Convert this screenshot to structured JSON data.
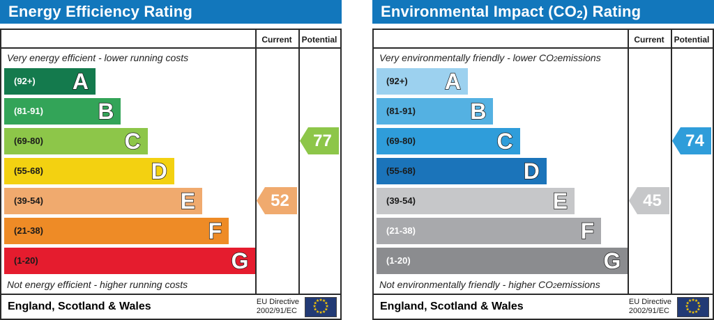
{
  "theme": {
    "title_bg": "#1277bc",
    "border": "#2a2a2a",
    "flag_bg": "#223a75",
    "flag_star_color": "#ffcc00",
    "flag_star": "★"
  },
  "charts": [
    {
      "id": "energy-efficiency",
      "title": {
        "pre": "Energy Efficiency Rating",
        "sub": "",
        "post": ""
      },
      "header": {
        "current": "Current",
        "potential": "Potential"
      },
      "top_caption": {
        "pre": "Very energy efficient - lower running costs",
        "sub": "",
        "post": ""
      },
      "bottom_caption": {
        "pre": "Not energy efficient - higher running costs",
        "sub": "",
        "post": ""
      },
      "bands": [
        {
          "letter": "A",
          "range": "(92+)",
          "color": "#147a4d",
          "width": "36%",
          "label_color": "#ffffff"
        },
        {
          "letter": "B",
          "range": "(81-91)",
          "color": "#33a458",
          "width": "46%",
          "label_color": "#ffffff"
        },
        {
          "letter": "C",
          "range": "(69-80)",
          "color": "#8dc649",
          "width": "56.5%",
          "label_color": "#1a1a1a"
        },
        {
          "letter": "D",
          "range": "(55-68)",
          "color": "#f3d111",
          "width": "67%",
          "label_color": "#1a1a1a"
        },
        {
          "letter": "E",
          "range": "(39-54)",
          "color": "#f0aa6e",
          "width": "78%",
          "label_color": "#1a1a1a"
        },
        {
          "letter": "F",
          "range": "(21-38)",
          "color": "#ee8b26",
          "width": "88.5%",
          "label_color": "#1a1a1a"
        },
        {
          "letter": "G",
          "range": "(1-20)",
          "color": "#e51c2e",
          "width": "99%",
          "label_color": "#1a1a1a"
        }
      ],
      "current": {
        "value": "52",
        "band_index": 4,
        "color": "#f0aa6e"
      },
      "potential": {
        "value": "77",
        "band_index": 2,
        "color": "#8dc649"
      },
      "footer": {
        "region": "England, Scotland & Wales",
        "directive_line1": "EU Directive",
        "directive_line2": "2002/91/EC"
      }
    },
    {
      "id": "environmental-impact-co2",
      "title": {
        "pre": "Environmental Impact (CO",
        "sub": "2",
        "post": ") Rating"
      },
      "header": {
        "current": "Current",
        "potential": "Potential"
      },
      "top_caption": {
        "pre": "Very environmentally friendly - lower CO",
        "sub": "2",
        "post": " emissions"
      },
      "bottom_caption": {
        "pre": "Not environmentally friendly - higher CO",
        "sub": "2",
        "post": " emissions"
      },
      "bands": [
        {
          "letter": "A",
          "range": "(92+)",
          "color": "#9cd1ef",
          "width": "36%",
          "label_color": "#1a1a1a"
        },
        {
          "letter": "B",
          "range": "(81-91)",
          "color": "#54b1e2",
          "width": "46%",
          "label_color": "#1a1a1a"
        },
        {
          "letter": "C",
          "range": "(69-80)",
          "color": "#2f9dda",
          "width": "56.5%",
          "label_color": "#1a1a1a"
        },
        {
          "letter": "D",
          "range": "(55-68)",
          "color": "#1b74ba",
          "width": "67%",
          "label_color": "#1a1a1a"
        },
        {
          "letter": "E",
          "range": "(39-54)",
          "color": "#c6c7c9",
          "width": "78%",
          "label_color": "#1a1a1a"
        },
        {
          "letter": "F",
          "range": "(21-38)",
          "color": "#a8a9ac",
          "width": "88.5%",
          "label_color": "#ffffff"
        },
        {
          "letter": "G",
          "range": "(1-20)",
          "color": "#8b8c8f",
          "width": "99%",
          "label_color": "#ffffff"
        }
      ],
      "current": {
        "value": "45",
        "band_index": 4,
        "color": "#c6c7c9"
      },
      "potential": {
        "value": "74",
        "band_index": 2,
        "color": "#2f9dda"
      },
      "footer": {
        "region": "England, Scotland & Wales",
        "directive_line1": "EU Directive",
        "directive_line2": "2002/91/EC"
      }
    }
  ],
  "chart_data": [
    {
      "type": "bar",
      "title": "Energy Efficiency Rating",
      "categories": [
        "A (92+)",
        "B (81-91)",
        "C (69-80)",
        "D (55-68)",
        "E (39-54)",
        "F (21-38)",
        "G (1-20)"
      ],
      "band_score_ranges": [
        [
          92,
          100
        ],
        [
          81,
          91
        ],
        [
          69,
          80
        ],
        [
          55,
          68
        ],
        [
          39,
          54
        ],
        [
          21,
          38
        ],
        [
          1,
          20
        ]
      ],
      "series": [
        {
          "name": "Current",
          "value": 52,
          "band": "E"
        },
        {
          "name": "Potential",
          "value": 77,
          "band": "C"
        }
      ],
      "annotation_top": "Very energy efficient - lower running costs",
      "annotation_bottom": "Not energy efficient - higher running costs",
      "region": "England, Scotland & Wales",
      "directive": "EU Directive 2002/91/EC",
      "xlim": [
        1,
        100
      ]
    },
    {
      "type": "bar",
      "title": "Environmental Impact (CO2) Rating",
      "categories": [
        "A (92+)",
        "B (81-91)",
        "C (69-80)",
        "D (55-68)",
        "E (39-54)",
        "F (21-38)",
        "G (1-20)"
      ],
      "band_score_ranges": [
        [
          92,
          100
        ],
        [
          81,
          91
        ],
        [
          69,
          80
        ],
        [
          55,
          68
        ],
        [
          39,
          54
        ],
        [
          21,
          38
        ],
        [
          1,
          20
        ]
      ],
      "series": [
        {
          "name": "Current",
          "value": 45,
          "band": "E"
        },
        {
          "name": "Potential",
          "value": 74,
          "band": "C"
        }
      ],
      "annotation_top": "Very environmentally friendly - lower CO2 emissions",
      "annotation_bottom": "Not environmentally friendly - higher CO2 emissions",
      "region": "England, Scotland & Wales",
      "directive": "EU Directive 2002/91/EC",
      "xlim": [
        1,
        100
      ]
    }
  ]
}
